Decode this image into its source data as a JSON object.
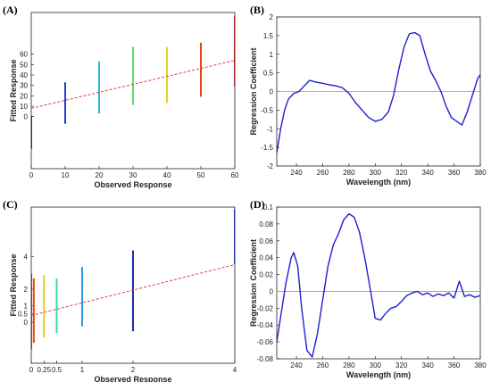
{
  "colors": {
    "line": "#1f1fd0",
    "zero": "#9a9a9a",
    "fit": "#e23a3a",
    "axis": "#222222"
  },
  "chart_data": [
    {
      "panel_label": "(A)",
      "type": "scatter",
      "xlabel": "Observed Response",
      "ylabel": "Fitted Response",
      "xlim": [
        0,
        60
      ],
      "ylim": [
        -50,
        100
      ],
      "xticks": [
        "0",
        "10",
        "20",
        "30",
        "40",
        "50",
        "60"
      ],
      "yticks": [
        "0",
        "10",
        "20",
        "30",
        "40",
        "50",
        "60"
      ],
      "grid": false,
      "fit_line": {
        "from": [
          0,
          8
        ],
        "to": [
          60,
          54
        ]
      },
      "series": [
        {
          "x": 0,
          "ymin": -30,
          "ymax": 0,
          "color": "#1f1f9a"
        },
        {
          "x": 10,
          "ymin": -6,
          "ymax": 32,
          "color": "#2a3fd6"
        },
        {
          "x": 20,
          "ymin": 4,
          "ymax": 52,
          "color": "#2ab4e0"
        },
        {
          "x": 30,
          "ymin": 12,
          "ymax": 66,
          "color": "#5ed873"
        },
        {
          "x": 40,
          "ymin": 14,
          "ymax": 66,
          "color": "#e6d21e"
        },
        {
          "x": 50,
          "ymin": 20,
          "ymax": 70,
          "color": "#e2451d"
        },
        {
          "x": 60,
          "ymin": 30,
          "ymax": 96,
          "color": "#b01818"
        }
      ]
    },
    {
      "panel_label": "(B)",
      "type": "line",
      "xlabel": "Wavelength (nm)",
      "ylabel": "Regression Coefficient",
      "xlim": [
        225,
        380
      ],
      "ylim": [
        -2,
        2
      ],
      "xticks": [
        "240",
        "260",
        "280",
        "300",
        "320",
        "340",
        "360",
        "380"
      ],
      "yticks": [
        "-2",
        "-1.5",
        "-1",
        "-0.5",
        "0",
        "0.5",
        "1",
        "1.5",
        "2"
      ],
      "grid": false,
      "x": [
        225,
        228,
        231,
        234,
        238,
        242,
        246,
        250,
        255,
        260,
        265,
        270,
        275,
        280,
        285,
        290,
        295,
        300,
        305,
        310,
        314,
        318,
        322,
        326,
        330,
        334,
        338,
        342,
        346,
        350,
        354,
        358,
        362,
        366,
        370,
        374,
        378,
        380
      ],
      "y": [
        -1.65,
        -1.0,
        -0.5,
        -0.2,
        -0.05,
        0.0,
        0.15,
        0.3,
        0.25,
        0.22,
        0.18,
        0.15,
        0.1,
        -0.05,
        -0.3,
        -0.5,
        -0.7,
        -0.8,
        -0.75,
        -0.55,
        -0.1,
        0.6,
        1.2,
        1.55,
        1.58,
        1.5,
        1.0,
        0.55,
        0.3,
        0.0,
        -0.4,
        -0.7,
        -0.8,
        -0.9,
        -0.55,
        -0.1,
        0.35,
        0.45
      ]
    },
    {
      "panel_label": "(C)",
      "type": "scatter",
      "xlabel": "Observed Response",
      "ylabel": "Fitted Response",
      "xlim": [
        0,
        4
      ],
      "ylim": [
        -2.5,
        7
      ],
      "xticks": [
        "0",
        "0.25",
        "0.5",
        "1",
        "2",
        "4"
      ],
      "xtick_values": [
        0,
        0.25,
        0.5,
        1,
        2,
        4
      ],
      "yticks": [
        "0",
        "0.5",
        "1",
        "2",
        "4"
      ],
      "ytick_values": [
        0,
        0.5,
        1,
        2,
        4
      ],
      "grid": false,
      "fit_line": {
        "from": [
          0,
          0.4
        ],
        "to": [
          4,
          3.5
        ]
      },
      "series": [
        {
          "x": 0,
          "ymin": -1.6,
          "ymax": 2.9,
          "color": "#c41b1b"
        },
        {
          "x": 0.05,
          "ymin": -1.2,
          "ymax": 2.6,
          "color": "#e44a1c"
        },
        {
          "x": 0.25,
          "ymin": -0.9,
          "ymax": 2.8,
          "color": "#e2d21e"
        },
        {
          "x": 0.5,
          "ymin": -0.6,
          "ymax": 2.6,
          "color": "#3fd8b8"
        },
        {
          "x": 1,
          "ymin": -0.2,
          "ymax": 3.3,
          "color": "#2a9fe0"
        },
        {
          "x": 2,
          "ymin": -0.5,
          "ymax": 4.3,
          "color": "#1f2ab0"
        },
        {
          "x": 4,
          "ymin": 3.6,
          "ymax": 6.8,
          "color": "#1f2ab0"
        }
      ]
    },
    {
      "panel_label": "(D)",
      "type": "line",
      "xlabel": "Wavelength (nm)",
      "ylabel": "Regression Coefficient",
      "xlim": [
        225,
        380
      ],
      "ylim": [
        -0.08,
        0.1
      ],
      "xticks": [
        "240",
        "260",
        "280",
        "300",
        "320",
        "340",
        "360",
        "380"
      ],
      "yticks": [
        "-0.08",
        "-0.06",
        "-0.04",
        "-0.02",
        "0",
        "0.02",
        "0.04",
        "0.06",
        "0.08",
        "0.1"
      ],
      "grid": false,
      "x": [
        225,
        228,
        232,
        236,
        238,
        241,
        244,
        248,
        252,
        256,
        260,
        264,
        268,
        272,
        276,
        280,
        284,
        288,
        292,
        296,
        300,
        304,
        308,
        312,
        316,
        320,
        324,
        328,
        332,
        336,
        340,
        344,
        348,
        352,
        356,
        360,
        364,
        368,
        372,
        376,
        380
      ],
      "y": [
        -0.06,
        -0.03,
        0.01,
        0.04,
        0.046,
        0.03,
        -0.02,
        -0.07,
        -0.078,
        -0.05,
        -0.01,
        0.03,
        0.055,
        0.068,
        0.085,
        0.092,
        0.088,
        0.07,
        0.04,
        0.005,
        -0.032,
        -0.034,
        -0.026,
        -0.02,
        -0.018,
        -0.012,
        -0.005,
        -0.002,
        0.0,
        -0.004,
        -0.002,
        -0.006,
        -0.003,
        -0.005,
        -0.002,
        -0.008,
        0.012,
        -0.006,
        -0.004,
        -0.007,
        -0.005
      ]
    }
  ]
}
